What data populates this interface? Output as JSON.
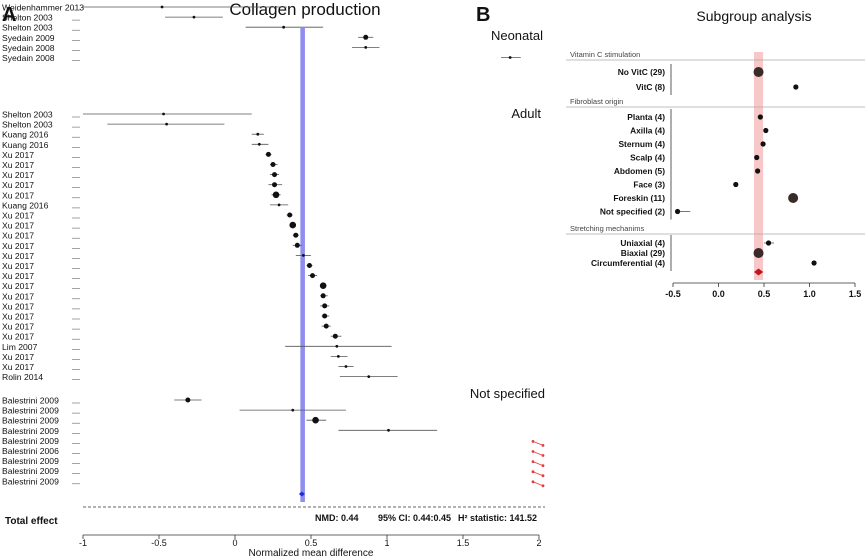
{
  "colors": {
    "band_a": "#8e8ef0",
    "band_b": "#f8c7c7",
    "diamond": "#c0141c",
    "marker": "#111111",
    "red": "#e23c3c",
    "line": "#555555",
    "header_rule": "#aaaaaa"
  },
  "panel_a": {
    "letter": "A",
    "title": "Collagen production",
    "xlabel": "Normalized mean difference",
    "section_labels": {
      "neonatal": "Neonatal",
      "adult": "Adult",
      "not_specified": "Not specified"
    },
    "total_label": "Total effect",
    "stats": {
      "nmd": "NMD: 0.44",
      "ci": "95% CI: 0.44:0.45",
      "h2": "H² statistic: 141.52"
    }
  },
  "panel_b": {
    "letter": "B",
    "title": "Subgroup analysis"
  },
  "chart_data": [
    {
      "type": "forest",
      "title": "Collagen production",
      "xlabel": "Normalized mean difference",
      "xlim": [
        -1,
        2
      ],
      "xticks": [
        "-1",
        "-0.5",
        "0",
        "0.5",
        "1",
        "1.5",
        "2"
      ],
      "pooled": {
        "value": 0.44,
        "ci": [
          0.44,
          0.45
        ]
      },
      "band": [
        0.43,
        0.46
      ],
      "groups": [
        {
          "name": "Neonatal",
          "rows": [
            {
              "label": "Weidenhammer 2013",
              "est": -0.48,
              "lo": -1.0,
              "hi": 0.34,
              "size": 1
            },
            {
              "label": "Shelton 2003",
              "est": -0.27,
              "lo": -0.46,
              "hi": -0.08,
              "size": 1
            },
            {
              "label": "Shelton 2003",
              "est": 0.32,
              "lo": 0.07,
              "hi": 0.58,
              "size": 1
            },
            {
              "label": "Syedain 2009",
              "est": 0.86,
              "lo": 0.81,
              "hi": 0.91,
              "size": 2
            },
            {
              "label": "Syedain 2008",
              "est": 0.86,
              "lo": 0.77,
              "hi": 0.95,
              "size": 1
            },
            {
              "label": "Syedain 2008",
              "est": 1.81,
              "lo": 1.75,
              "hi": 1.88,
              "size": 1
            }
          ]
        },
        {
          "name": "Adult",
          "rows": [
            {
              "label": "Shelton 2003",
              "est": -0.47,
              "lo": -1.0,
              "hi": 0.11,
              "size": 1
            },
            {
              "label": "Shelton 2003",
              "est": -0.45,
              "lo": -0.84,
              "hi": -0.07,
              "size": 1
            },
            {
              "label": "Kuang 2016",
              "est": 0.15,
              "lo": 0.11,
              "hi": 0.19,
              "size": 1
            },
            {
              "label": "Kuang 2016",
              "est": 0.16,
              "lo": 0.11,
              "hi": 0.22,
              "size": 1
            },
            {
              "label": "Xu 2017",
              "est": 0.22,
              "lo": 0.2,
              "hi": 0.24,
              "size": 2
            },
            {
              "label": "Xu 2017",
              "est": 0.25,
              "lo": 0.23,
              "hi": 0.28,
              "size": 2
            },
            {
              "label": "Xu 2017",
              "est": 0.26,
              "lo": 0.23,
              "hi": 0.29,
              "size": 2
            },
            {
              "label": "Xu 2017",
              "est": 0.26,
              "lo": 0.22,
              "hi": 0.31,
              "size": 2
            },
            {
              "label": "Xu 2017",
              "est": 0.27,
              "lo": 0.24,
              "hi": 0.3,
              "size": 3
            },
            {
              "label": "Kuang 2016",
              "est": 0.29,
              "lo": 0.23,
              "hi": 0.35,
              "size": 1
            },
            {
              "label": "Xu 2017",
              "est": 0.36,
              "lo": 0.34,
              "hi": 0.38,
              "size": 2
            },
            {
              "label": "Xu 2017",
              "est": 0.38,
              "lo": 0.36,
              "hi": 0.4,
              "size": 3
            },
            {
              "label": "Xu 2017",
              "est": 0.4,
              "lo": 0.38,
              "hi": 0.42,
              "size": 2
            },
            {
              "label": "Xu 2017",
              "est": 0.41,
              "lo": 0.38,
              "hi": 0.44,
              "size": 2
            },
            {
              "label": "Xu 2017",
              "est": 0.45,
              "lo": 0.4,
              "hi": 0.5,
              "size": 1
            },
            {
              "label": "Xu 2017",
              "est": 0.49,
              "lo": 0.47,
              "hi": 0.51,
              "size": 2
            },
            {
              "label": "Xu 2017",
              "est": 0.51,
              "lo": 0.48,
              "hi": 0.54,
              "size": 2
            },
            {
              "label": "Xu 2017",
              "est": 0.58,
              "lo": 0.56,
              "hi": 0.6,
              "size": 3
            },
            {
              "label": "Xu 2017",
              "est": 0.58,
              "lo": 0.56,
              "hi": 0.61,
              "size": 2
            },
            {
              "label": "Xu 2017",
              "est": 0.59,
              "lo": 0.56,
              "hi": 0.62,
              "size": 2
            },
            {
              "label": "Xu 2017",
              "est": 0.59,
              "lo": 0.57,
              "hi": 0.62,
              "size": 2
            },
            {
              "label": "Xu 2017",
              "est": 0.6,
              "lo": 0.57,
              "hi": 0.63,
              "size": 2
            },
            {
              "label": "Xu 2017",
              "est": 0.66,
              "lo": 0.63,
              "hi": 0.7,
              "size": 2
            },
            {
              "label": "Lim 2007",
              "est": 0.67,
              "lo": 0.33,
              "hi": 1.03,
              "size": 1
            },
            {
              "label": "Xu 2017",
              "est": 0.68,
              "lo": 0.63,
              "hi": 0.74,
              "size": 1
            },
            {
              "label": "Xu 2017",
              "est": 0.73,
              "lo": 0.68,
              "hi": 0.78,
              "size": 1
            },
            {
              "label": "Rolin 2014",
              "est": 0.88,
              "lo": 0.69,
              "hi": 1.07,
              "size": 1
            }
          ]
        },
        {
          "name": "Not specified",
          "rows": [
            {
              "label": "Balestrini 2009",
              "est": -0.31,
              "lo": -0.4,
              "hi": -0.22,
              "size": 2
            },
            {
              "label": "Balestrini 2009",
              "est": 0.38,
              "lo": 0.03,
              "hi": 0.73,
              "size": 1
            },
            {
              "label": "Balestrini 2009",
              "est": 0.53,
              "lo": 0.47,
              "hi": 0.6,
              "size": 3
            },
            {
              "label": "Balestrini 2009",
              "est": 1.01,
              "lo": 0.68,
              "hi": 1.33,
              "size": 1
            },
            {
              "label": "Balestrini 2009",
              "est": null,
              "lo": null,
              "hi": null,
              "size": 0,
              "flag": true
            },
            {
              "label": "Balestrini 2006",
              "est": null,
              "lo": null,
              "hi": null,
              "size": 0,
              "flag": true
            },
            {
              "label": "Balestrini 2009",
              "est": null,
              "lo": null,
              "hi": null,
              "size": 0,
              "flag": true
            },
            {
              "label": "Balestrini 2009",
              "est": null,
              "lo": null,
              "hi": null,
              "size": 0,
              "flag": true
            },
            {
              "label": "Balestrini 2009",
              "est": null,
              "lo": null,
              "hi": null,
              "size": 0,
              "flag": true
            }
          ]
        }
      ]
    },
    {
      "type": "forest",
      "title": "Subgroup analysis",
      "xlim": [
        -0.5,
        1.5
      ],
      "xticks": [
        "-0.5",
        "0.0",
        "0.5",
        "1.0",
        "1.5"
      ],
      "band": [
        0.39,
        0.49
      ],
      "pooled_diamond": {
        "value": 0.44,
        "ci": [
          0.39,
          0.49
        ]
      },
      "groups": [
        {
          "name": "Vitamin C stimulation",
          "rows": [
            {
              "label": "No VitC (29)",
              "est": 0.44,
              "lo": 0.42,
              "hi": 0.46,
              "size": 3
            },
            {
              "label": "VitC (8)",
              "est": 0.85,
              "lo": 0.83,
              "hi": 0.87,
              "size": 1
            }
          ]
        },
        {
          "name": "Fibroblast origin",
          "rows": [
            {
              "label": "Planta (4)",
              "est": 0.46,
              "lo": 0.44,
              "hi": 0.48,
              "size": 1
            },
            {
              "label": "Axilla (4)",
              "est": 0.52,
              "lo": 0.5,
              "hi": 0.54,
              "size": 1
            },
            {
              "label": "Sternum (4)",
              "est": 0.49,
              "lo": 0.47,
              "hi": 0.51,
              "size": 1
            },
            {
              "label": "Scalp (4)",
              "est": 0.42,
              "lo": 0.4,
              "hi": 0.44,
              "size": 1
            },
            {
              "label": "Abdomen (5)",
              "est": 0.43,
              "lo": 0.41,
              "hi": 0.45,
              "size": 1
            },
            {
              "label": "Face (3)",
              "est": 0.19,
              "lo": 0.17,
              "hi": 0.21,
              "size": 1
            },
            {
              "label": "Foreskin (11)",
              "est": 0.82,
              "lo": 0.8,
              "hi": 0.84,
              "size": 3
            },
            {
              "label": "Not specified (2)",
              "est": -0.45,
              "lo": -0.47,
              "hi": -0.31,
              "size": 1
            }
          ]
        },
        {
          "name": "Stretching mechanims",
          "rows": [
            {
              "label": "Uniaxial (4)",
              "est": 0.55,
              "lo": 0.5,
              "hi": 0.61,
              "size": 1
            },
            {
              "label": "Biaxial (29)",
              "est": 0.44,
              "lo": 0.42,
              "hi": 0.46,
              "size": 3
            },
            {
              "label": "Circumferential (4)",
              "est": 1.05,
              "lo": 1.04,
              "hi": 1.06,
              "size": 1
            }
          ]
        }
      ]
    }
  ]
}
